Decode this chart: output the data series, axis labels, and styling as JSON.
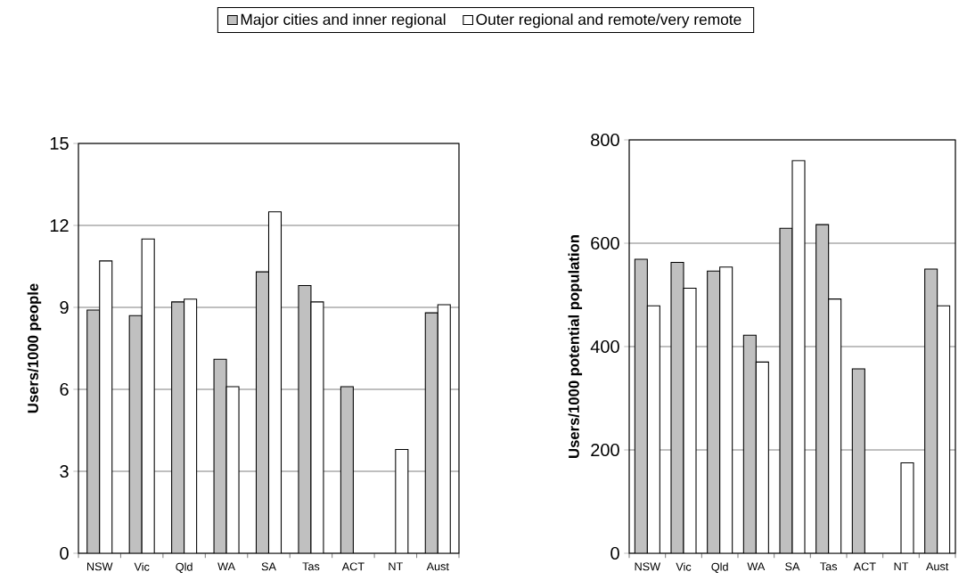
{
  "chart_data": [
    {
      "type": "bar",
      "categories": [
        "NSW",
        "Vic",
        "Qld",
        "WA",
        "SA",
        "Tas",
        "ACT",
        "NT",
        "Aust"
      ],
      "ylabel": "Users/1000  people",
      "ylim": [
        0,
        15
      ],
      "yticks": [
        0,
        3,
        6,
        9,
        12,
        15
      ],
      "grid": "y",
      "legend": "top",
      "series": [
        {
          "name": "Major cities and inner regional",
          "color": "#c0c0c0",
          "values": [
            8.9,
            8.7,
            9.2,
            7.1,
            10.3,
            9.8,
            6.1,
            null,
            8.8
          ]
        },
        {
          "name": "Outer regional and remote/very remote",
          "color": "#ffffff",
          "values": [
            10.7,
            11.5,
            9.3,
            6.1,
            12.5,
            9.2,
            null,
            3.8,
            9.1
          ]
        }
      ]
    },
    {
      "type": "bar",
      "categories": [
        "NSW",
        "Vic",
        "Qld",
        "WA",
        "SA",
        "Tas",
        "ACT",
        "NT",
        "Aust"
      ],
      "ylabel": "Users/1000  potential population",
      "ylim": [
        0,
        800
      ],
      "yticks": [
        0,
        200,
        400,
        600,
        800
      ],
      "grid": "y",
      "series": [
        {
          "color": "#c0c0c0",
          "values": [
            569,
            563,
            546,
            422,
            629,
            636,
            357,
            null,
            550
          ]
        },
        {
          "color": "#ffffff",
          "values": [
            479,
            513,
            554,
            370,
            760,
            492,
            null,
            175,
            479
          ]
        }
      ]
    }
  ]
}
